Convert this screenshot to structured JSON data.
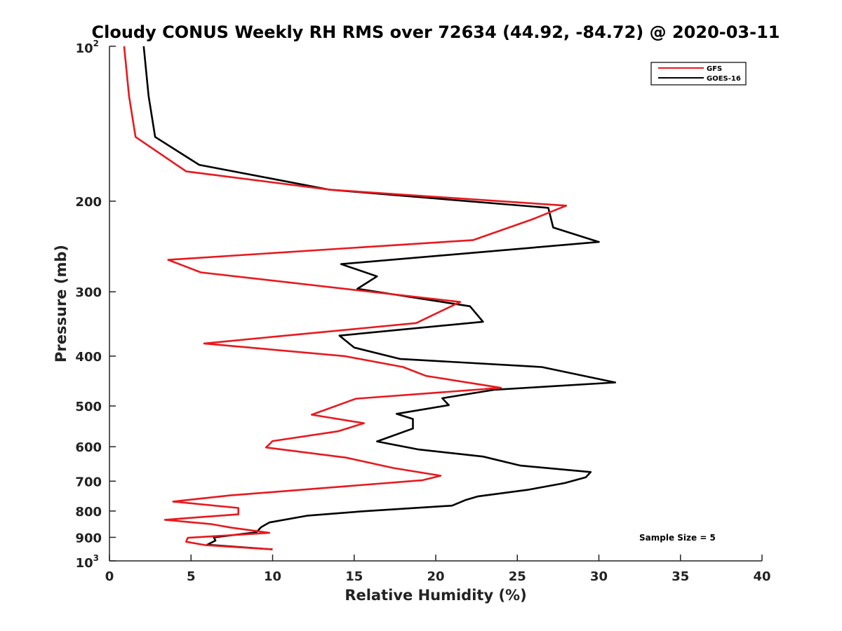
{
  "chart_data": {
    "type": "line",
    "title": "Cloudy CONUS Weekly RH RMS over 72634 (44.92, -84.72) @ 2020-03-11",
    "xlabel": "Relative Humidity (%)",
    "ylabel": "Pressure (mb)",
    "xlim": [
      0,
      40
    ],
    "ylim": [
      100,
      1000
    ],
    "yscale": "log",
    "y_reversed": true,
    "x_ticks": [
      "0",
      "5",
      "10",
      "15",
      "20",
      "25",
      "30",
      "35",
      "40"
    ],
    "y_ticks": [
      {
        "value": 100,
        "base": "10",
        "exp": "2"
      },
      {
        "value": 200,
        "label": "200"
      },
      {
        "value": 300,
        "label": "300"
      },
      {
        "value": 400,
        "label": "400"
      },
      {
        "value": 500,
        "label": "500"
      },
      {
        "value": 600,
        "label": "600"
      },
      {
        "value": 700,
        "label": "700"
      },
      {
        "value": 800,
        "label": "800"
      },
      {
        "value": 900,
        "label": "900"
      },
      {
        "value": 1000,
        "base": "10",
        "exp": "3"
      }
    ],
    "legend_position": "top-right",
    "grid": false,
    "annotation": "Sample Size = 5",
    "series": [
      {
        "name": "GFS",
        "color": "#e8191d",
        "points": [
          [
            0.9,
            100
          ],
          [
            1.2,
            125
          ],
          [
            1.6,
            150
          ],
          [
            4.7,
            175
          ],
          [
            13.5,
            190
          ],
          [
            28.0,
            204
          ],
          [
            25.9,
            217
          ],
          [
            22.3,
            238
          ],
          [
            3.6,
            260
          ],
          [
            5.6,
            275
          ],
          [
            21.5,
            314
          ],
          [
            18.8,
            345
          ],
          [
            5.8,
            378
          ],
          [
            14.4,
            400
          ],
          [
            18.0,
            420
          ],
          [
            19.4,
            437
          ],
          [
            24.0,
            461
          ],
          [
            15.1,
            484
          ],
          [
            12.4,
            520
          ],
          [
            15.6,
            540
          ],
          [
            14.0,
            560
          ],
          [
            10.0,
            585
          ],
          [
            9.6,
            602
          ],
          [
            14.5,
            630
          ],
          [
            17.4,
            660
          ],
          [
            20.3,
            683
          ],
          [
            19.2,
            697
          ],
          [
            7.4,
            746
          ],
          [
            3.9,
            767
          ],
          [
            7.9,
            789
          ],
          [
            7.9,
            812
          ],
          [
            3.4,
            832
          ],
          [
            6.2,
            848
          ],
          [
            7.5,
            862
          ],
          [
            9.8,
            882
          ],
          [
            4.8,
            902
          ],
          [
            4.7,
            918
          ],
          [
            5.9,
            932
          ],
          [
            10.0,
            950
          ]
        ]
      },
      {
        "name": "GOES-16",
        "color": "#000000",
        "points": [
          [
            2.1,
            100
          ],
          [
            2.4,
            125
          ],
          [
            2.8,
            150
          ],
          [
            5.5,
            170
          ],
          [
            13.5,
            190
          ],
          [
            26.9,
            206
          ],
          [
            27.2,
            225
          ],
          [
            30.0,
            240
          ],
          [
            14.2,
            265
          ],
          [
            16.4,
            280
          ],
          [
            15.2,
            296
          ],
          [
            22.1,
            320
          ],
          [
            22.9,
            343
          ],
          [
            14.1,
            365
          ],
          [
            15.0,
            385
          ],
          [
            17.8,
            405
          ],
          [
            26.5,
            420
          ],
          [
            31.0,
            450
          ],
          [
            23.6,
            465
          ],
          [
            20.4,
            483
          ],
          [
            20.8,
            498
          ],
          [
            17.6,
            518
          ],
          [
            18.6,
            530
          ],
          [
            18.6,
            553
          ],
          [
            16.4,
            586
          ],
          [
            18.9,
            607
          ],
          [
            22.9,
            627
          ],
          [
            25.2,
            653
          ],
          [
            29.5,
            672
          ],
          [
            29.2,
            688
          ],
          [
            27.9,
            706
          ],
          [
            25.7,
            727
          ],
          [
            22.6,
            749
          ],
          [
            21.8,
            762
          ],
          [
            21.0,
            781
          ],
          [
            15.5,
            801
          ],
          [
            12.1,
            817
          ],
          [
            9.8,
            842
          ],
          [
            9.3,
            860
          ],
          [
            9.0,
            880
          ],
          [
            6.4,
            900
          ],
          [
            6.5,
            913
          ],
          [
            6.0,
            930
          ],
          [
            10.0,
            950
          ]
        ]
      }
    ]
  }
}
